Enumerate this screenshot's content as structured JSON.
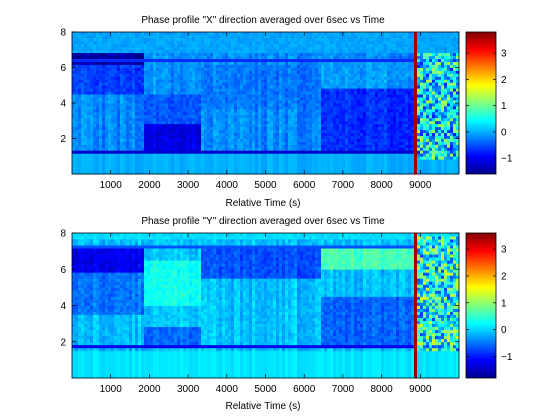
{
  "chart_data": [
    {
      "type": "heatmap",
      "title": "Phase profile \"X\" direction averaged over 6sec vs Time",
      "xlabel": "Relative Time (s)",
      "ylabel": "",
      "xlim": [
        0,
        10000
      ],
      "ylim": [
        0,
        8
      ],
      "xticks": [
        1000,
        2000,
        3000,
        4000,
        5000,
        6000,
        7000,
        8000,
        9000
      ],
      "yticks": [
        2,
        4,
        6,
        8
      ],
      "colorbar": {
        "range": [
          -1.6,
          3.8
        ],
        "ticks": [
          -1,
          0,
          1,
          2,
          3
        ],
        "colormap": "jet"
      },
      "top_edge": 6.4,
      "bottom_edge": 1.3,
      "base_value": -0.2,
      "regions": [
        {
          "t": [
            0,
            1850
          ],
          "y": [
            6.2,
            6.8
          ],
          "value": -1.4
        },
        {
          "t": [
            0,
            1850
          ],
          "y": [
            4.5,
            6.2
          ],
          "value": -0.6
        },
        {
          "t": [
            1850,
            3300
          ],
          "y": [
            1.2,
            2.8
          ],
          "value": -1.1
        },
        {
          "t": [
            1850,
            3300
          ],
          "y": [
            2.8,
            4.5
          ],
          "value": -0.5
        },
        {
          "t": [
            3300,
            6400
          ],
          "y": [
            3.6,
            6.2
          ],
          "value": -0.3
        },
        {
          "t": [
            6400,
            8800
          ],
          "y": [
            1.3,
            4.8
          ],
          "value": -0.7
        },
        {
          "t": [
            6400,
            8800
          ],
          "y": [
            4.8,
            6.4
          ],
          "value": -0.1
        },
        {
          "t": [
            8800,
            10000
          ],
          "y": [
            0.8,
            6.9
          ],
          "value": 0.3
        }
      ],
      "spike": {
        "t": [
          8800,
          8920
        ],
        "value": 3.6
      }
    },
    {
      "type": "heatmap",
      "title": "Phase profile \"Y\" direction averaged over 6sec vs Time",
      "xlabel": "Relative Time (s)",
      "ylabel": "",
      "xlim": [
        0,
        10000
      ],
      "ylim": [
        0,
        8
      ],
      "xticks": [
        1000,
        2000,
        3000,
        4000,
        5000,
        6000,
        7000,
        8000,
        9000
      ],
      "yticks": [
        2,
        4,
        6,
        8
      ],
      "colorbar": {
        "range": [
          -1.8,
          3.6
        ],
        "ticks": [
          -1,
          0,
          1,
          2,
          3
        ],
        "colormap": "jet"
      },
      "top_edge": 7.2,
      "bottom_edge": 1.7,
      "base_value": -0.1,
      "regions": [
        {
          "t": [
            0,
            1850
          ],
          "y": [
            5.8,
            7.2
          ],
          "value": -1.2
        },
        {
          "t": [
            0,
            1850
          ],
          "y": [
            3.5,
            5.8
          ],
          "value": -0.5
        },
        {
          "t": [
            1850,
            3300
          ],
          "y": [
            4.0,
            6.5
          ],
          "value": 0.3
        },
        {
          "t": [
            1850,
            3300
          ],
          "y": [
            1.7,
            2.8
          ],
          "value": -0.6
        },
        {
          "t": [
            3300,
            6400
          ],
          "y": [
            5.5,
            7.2
          ],
          "value": -0.7
        },
        {
          "t": [
            6400,
            8800
          ],
          "y": [
            6.0,
            7.2
          ],
          "value": 0.6
        },
        {
          "t": [
            6400,
            8800
          ],
          "y": [
            1.7,
            4.5
          ],
          "value": -0.6
        },
        {
          "t": [
            8800,
            10000
          ],
          "y": [
            1.5,
            7.8
          ],
          "value": 0.3
        }
      ],
      "spike": {
        "t": [
          8800,
          8920
        ],
        "value": 3.4
      }
    }
  ]
}
